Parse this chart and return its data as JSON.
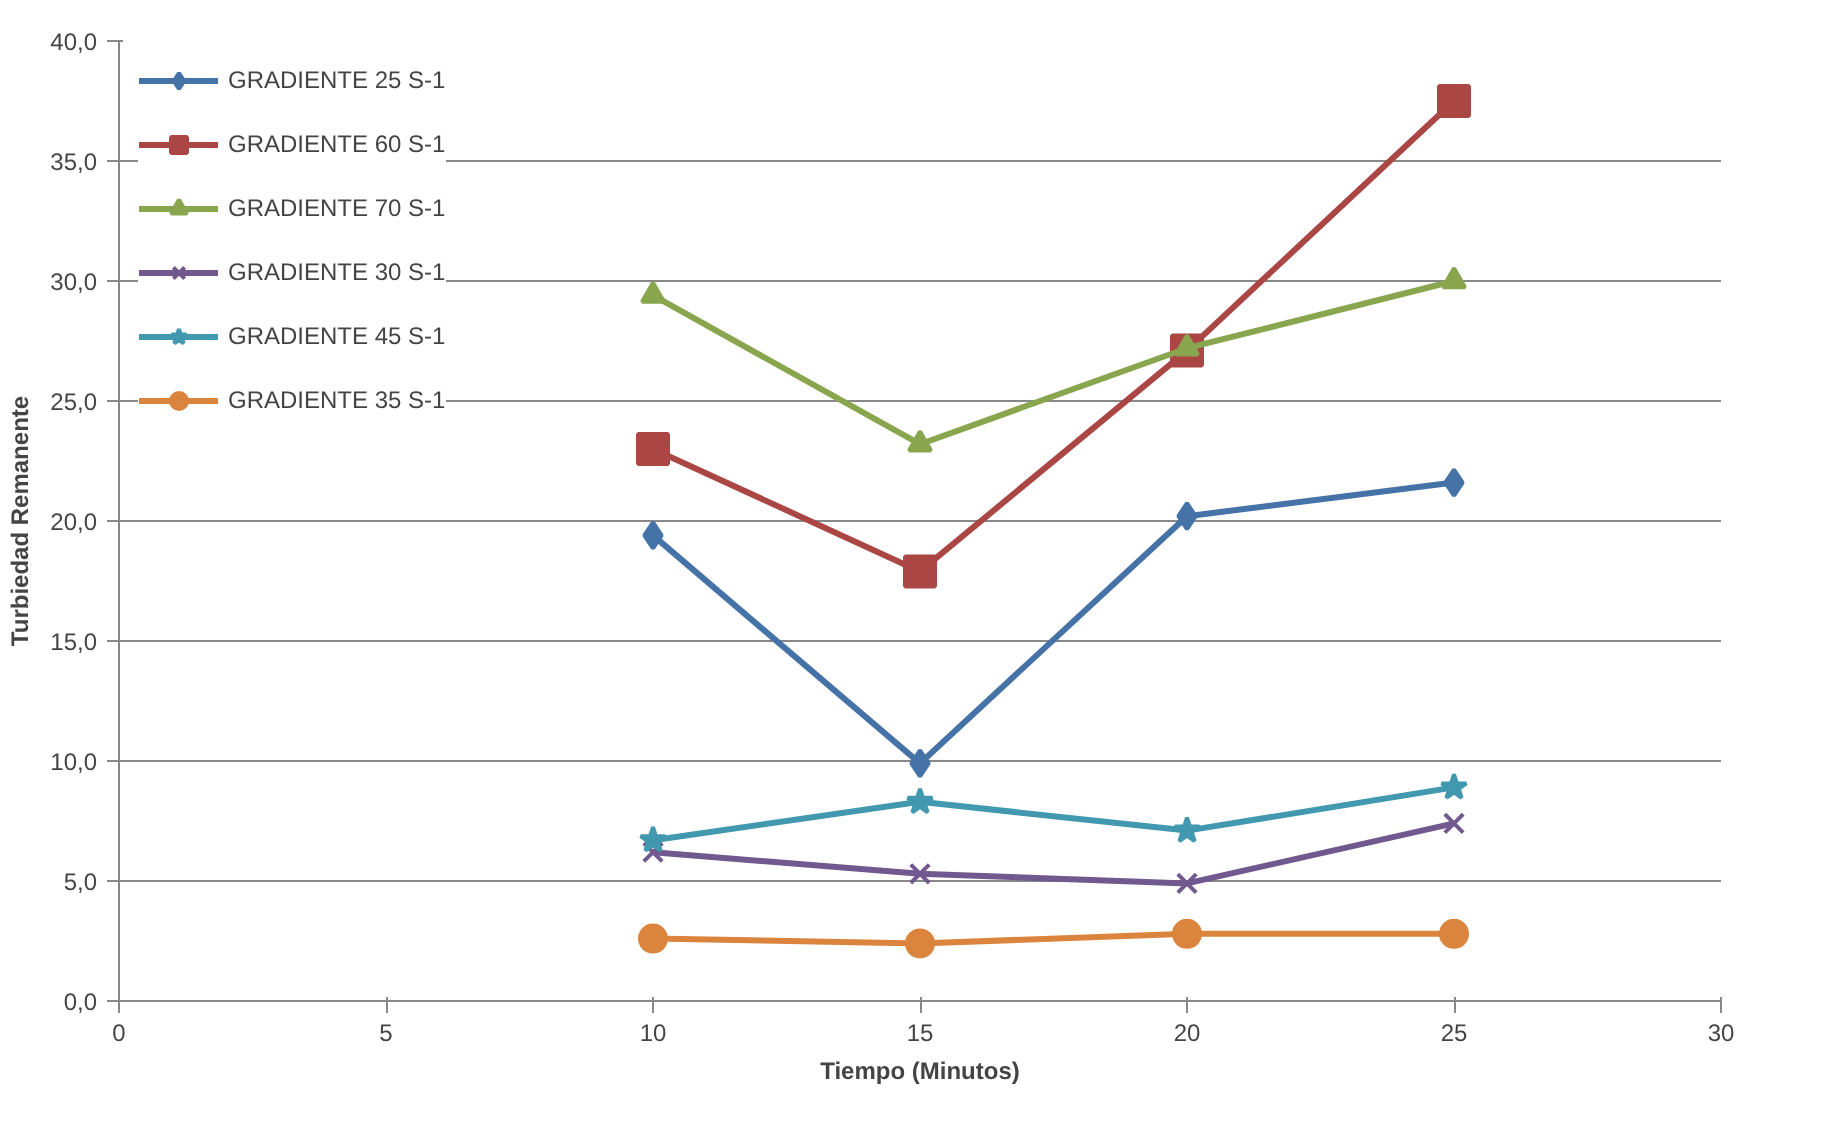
{
  "chart_data": {
    "type": "line",
    "xlabel": "Tiempo (Minutos)",
    "ylabel": "Turbiedad Remanente",
    "x": [
      10,
      15,
      20,
      25
    ],
    "series": [
      {
        "name": "GRADIENTE 25 S-1",
        "color": "#4572a7",
        "marker": "diamond",
        "values": [
          19.4,
          9.9,
          20.2,
          21.6
        ]
      },
      {
        "name": "GRADIENTE 60 S-1",
        "color": "#aa4643",
        "marker": "square",
        "values": [
          23.0,
          17.9,
          27.1,
          37.5
        ]
      },
      {
        "name": "GRADIENTE 70 S-1",
        "color": "#89a54e",
        "marker": "triangle",
        "values": [
          29.4,
          23.2,
          27.2,
          30.0
        ]
      },
      {
        "name": "GRADIENTE 30 S-1",
        "color": "#71588f",
        "marker": "cross",
        "values": [
          6.2,
          5.3,
          4.9,
          7.4
        ]
      },
      {
        "name": "GRADIENTE 45 S-1",
        "color": "#4198af",
        "marker": "star",
        "values": [
          6.7,
          8.3,
          7.1,
          8.9
        ]
      },
      {
        "name": "GRADIENTE 35 S-1",
        "color": "#db843d",
        "marker": "circle",
        "values": [
          2.6,
          2.4,
          2.8,
          2.8
        ]
      }
    ],
    "xlim": [
      0,
      30
    ],
    "xticks": [
      0,
      5,
      10,
      15,
      20,
      25,
      30
    ],
    "ylim": [
      0,
      40
    ],
    "yticks": [
      {
        "value": 0,
        "label": "0,0"
      },
      {
        "value": 5,
        "label": "5,0"
      },
      {
        "value": 10,
        "label": "10,0"
      },
      {
        "value": 15,
        "label": "15,0"
      },
      {
        "value": 20,
        "label": "20,0"
      },
      {
        "value": 25,
        "label": "25,0"
      },
      {
        "value": 30,
        "label": "30,0"
      },
      {
        "value": 35,
        "label": "35,0"
      },
      {
        "value": 40,
        "label": "40,0"
      }
    ],
    "grid": "y",
    "legend": "top left",
    "line_style": "solid"
  }
}
